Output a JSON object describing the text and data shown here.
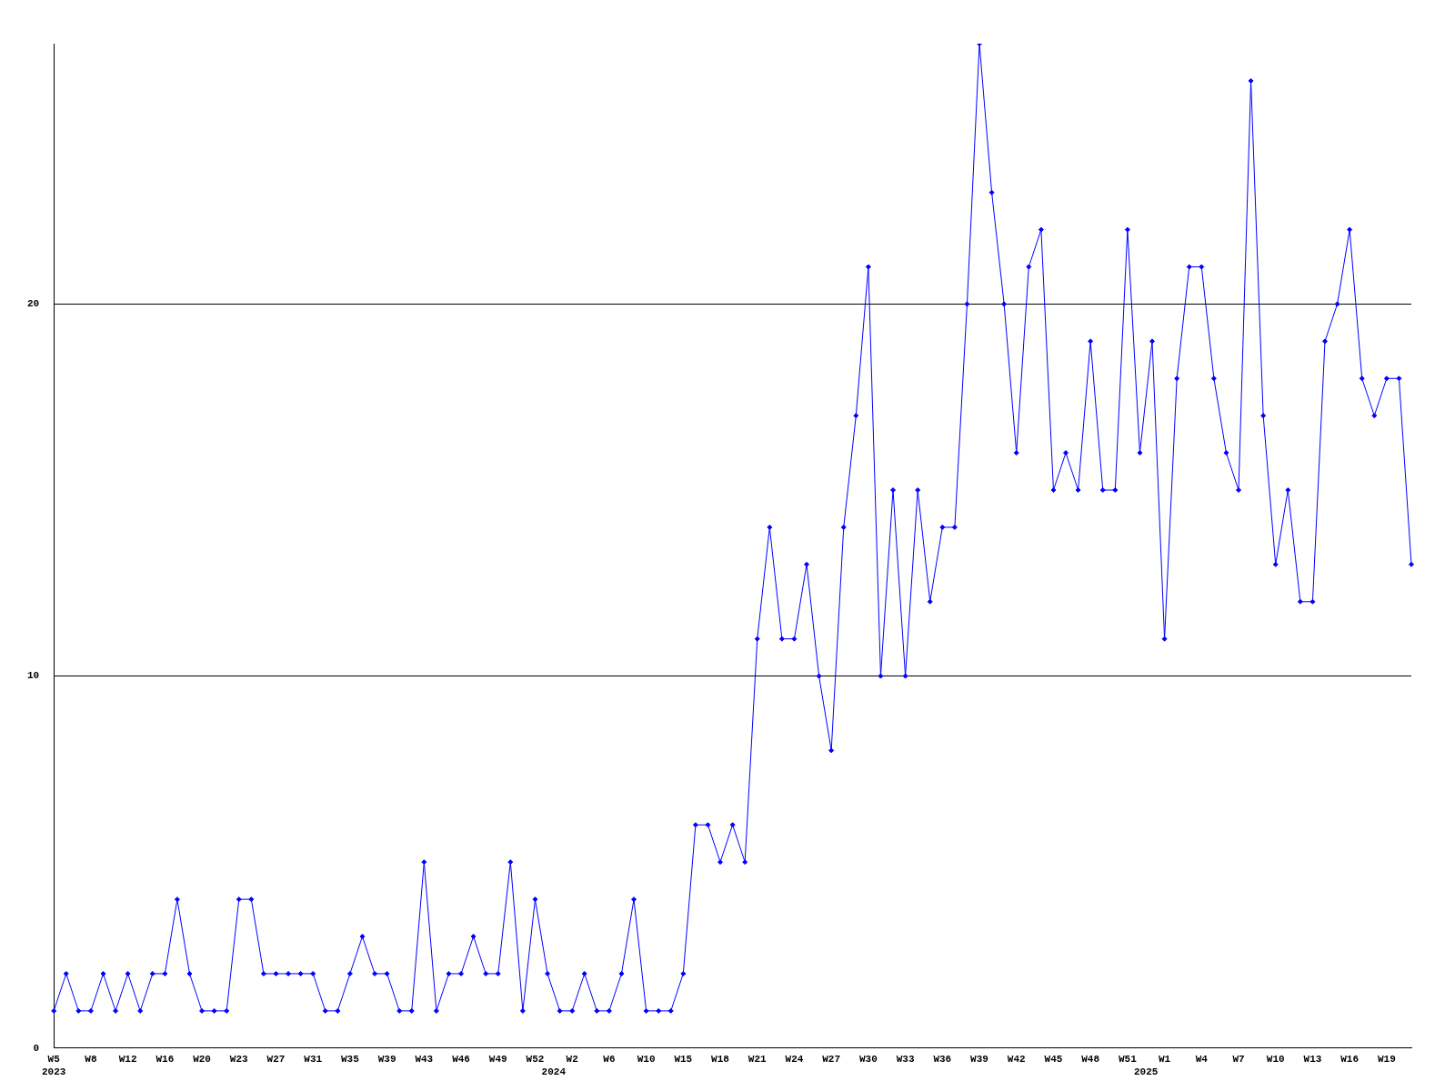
{
  "chart_data": {
    "type": "line",
    "categories": [
      "W5",
      null,
      null,
      "W8",
      null,
      null,
      "W12",
      null,
      null,
      "W16",
      null,
      null,
      "W20",
      null,
      null,
      "W23",
      null,
      null,
      "W27",
      null,
      null,
      "W31",
      null,
      null,
      "W35",
      null,
      null,
      "W39",
      null,
      null,
      "W43",
      null,
      null,
      "W46",
      null,
      null,
      "W49",
      null,
      null,
      "W52",
      null,
      null,
      "W2",
      null,
      null,
      "W6",
      null,
      null,
      "W10",
      null,
      null,
      "W15",
      null,
      null,
      "W18",
      null,
      null,
      "W21",
      null,
      null,
      "W24",
      null,
      null,
      "W27",
      null,
      null,
      "W30",
      null,
      null,
      "W33",
      null,
      null,
      "W36",
      null,
      null,
      "W39",
      null,
      null,
      "W42",
      null,
      null,
      "W45",
      null,
      null,
      "W48",
      null,
      null,
      "W51",
      null,
      null,
      "W1",
      null,
      null,
      "W4",
      null,
      null,
      "W7",
      null,
      null,
      "W10",
      null,
      null,
      "W13",
      null,
      null,
      "W16",
      null,
      null,
      "W19",
      null,
      null
    ],
    "series": [
      {
        "color": "#0000ff",
        "values": [
          1,
          2,
          1,
          1,
          2,
          1,
          2,
          1,
          2,
          2,
          4,
          2,
          1,
          1,
          1,
          4,
          4,
          2,
          2,
          2,
          2,
          2,
          1,
          1,
          2,
          3,
          2,
          2,
          1,
          1,
          5,
          1,
          2,
          2,
          3,
          2,
          2,
          5,
          1,
          4,
          2,
          1,
          1,
          2,
          1,
          1,
          2,
          4,
          1,
          1,
          1,
          2,
          6,
          6,
          5,
          6,
          5,
          11,
          14,
          11,
          11,
          13,
          10,
          8,
          14,
          17,
          21,
          10,
          15,
          10,
          15,
          12,
          14,
          14,
          20,
          27,
          23,
          20,
          16,
          21,
          22,
          15,
          16,
          15,
          19,
          15,
          15,
          22,
          16,
          19,
          11,
          18,
          21,
          21,
          18,
          16,
          15,
          26,
          17,
          13,
          15,
          12,
          12,
          19,
          20,
          22,
          18,
          17,
          18,
          18,
          13
        ]
      }
    ],
    "ylim": [
      0,
      27
    ],
    "yticks": [
      0,
      10,
      20
    ],
    "grid": "y",
    "legend": false,
    "marker": "diamond",
    "line_style": "solid",
    "annotations": [
      "2023",
      "2024",
      "2025"
    ]
  }
}
